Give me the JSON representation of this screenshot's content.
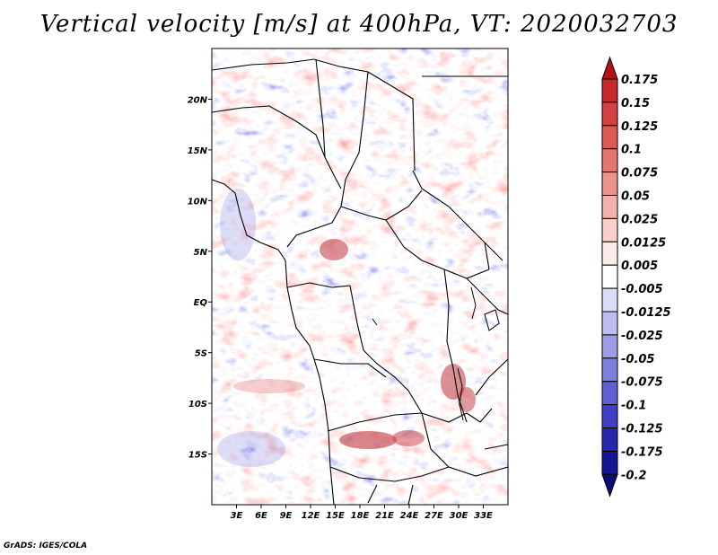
{
  "title": "Vertical velocity [m/s] at 400hPa, VT: 2020032703",
  "credit": "GrADS: IGES/COLA",
  "map": {
    "field": "Vertical velocity",
    "units": "m/s",
    "level": "400hPa",
    "valid_time": "2020032703",
    "lon_range": [
      0,
      36
    ],
    "lat_range": [
      -20,
      25
    ],
    "lon_ticks": [
      "3E",
      "6E",
      "9E",
      "12E",
      "15E",
      "18E",
      "21E",
      "24E",
      "27E",
      "30E",
      "33E"
    ],
    "lon_tick_values": [
      3,
      6,
      9,
      12,
      15,
      18,
      21,
      24,
      27,
      30,
      33
    ],
    "lat_ticks": [
      "20N",
      "15N",
      "10N",
      "5N",
      "EQ",
      "5S",
      "10S",
      "15S"
    ],
    "lat_tick_values": [
      20,
      15,
      10,
      5,
      0,
      -5,
      -10,
      -15
    ]
  },
  "colorbar": {
    "levels": [
      "0.175",
      "0.15",
      "0.125",
      "0.1",
      "0.075",
      "0.05",
      "0.025",
      "0.0125",
      "0.005",
      "-0.005",
      "-0.0125",
      "-0.025",
      "-0.05",
      "-0.075",
      "-0.1",
      "-0.125",
      "-0.175",
      "-0.2"
    ],
    "colors": [
      "#b31218",
      "#c8282c",
      "#d4403f",
      "#dc5a55",
      "#e4766f",
      "#ec938b",
      "#f3b1aa",
      "#f8cfca",
      "#fcebe9",
      "#ffffff",
      "#dcdcf6",
      "#bdbdef",
      "#9d9de6",
      "#7e7edc",
      "#5f5fd3",
      "#4040c6",
      "#2727ad",
      "#161695",
      "#0c0c78"
    ]
  }
}
